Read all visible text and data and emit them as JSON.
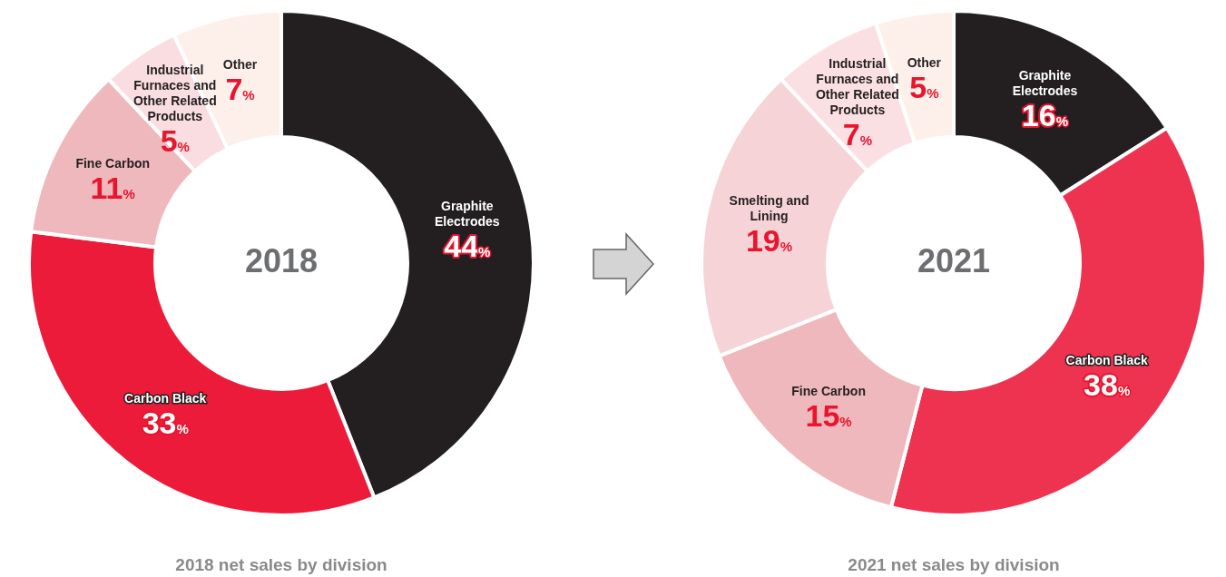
{
  "chart_data": [
    {
      "type": "donut",
      "title": "2018 net sales by division",
      "annotations": [
        "2018"
      ],
      "categories": [
        "Graphite Electrodes",
        "Carbon Black",
        "Fine Carbon",
        "Industrial Furnaces and Other Related Products",
        "Other"
      ],
      "values": [
        44,
        33,
        11,
        5,
        7
      ],
      "value_labels": [
        "44%",
        "33%",
        "11%",
        "5%",
        "7%"
      ],
      "colors": [
        "#231f20",
        "#ed1b3a",
        "#efb8bc",
        "#f9dde0",
        "#fdf0ea"
      ]
    },
    {
      "type": "donut",
      "title": "2021 net sales by division",
      "annotations": [
        "2021"
      ],
      "categories": [
        "Graphite Electrodes",
        "Carbon Black",
        "Fine Carbon",
        "Smelting and Lining",
        "Industrial Furnaces and Other Related Products",
        "Other"
      ],
      "values": [
        16,
        38,
        15,
        19,
        7,
        5
      ],
      "value_labels": [
        "16%",
        "38%",
        "15%",
        "19%",
        "7%",
        "5%"
      ],
      "colors": [
        "#231f20",
        "#ee3350",
        "#efb8bc",
        "#f5d3d6",
        "#fbe0e3",
        "#fdf0ea"
      ]
    }
  ]
}
